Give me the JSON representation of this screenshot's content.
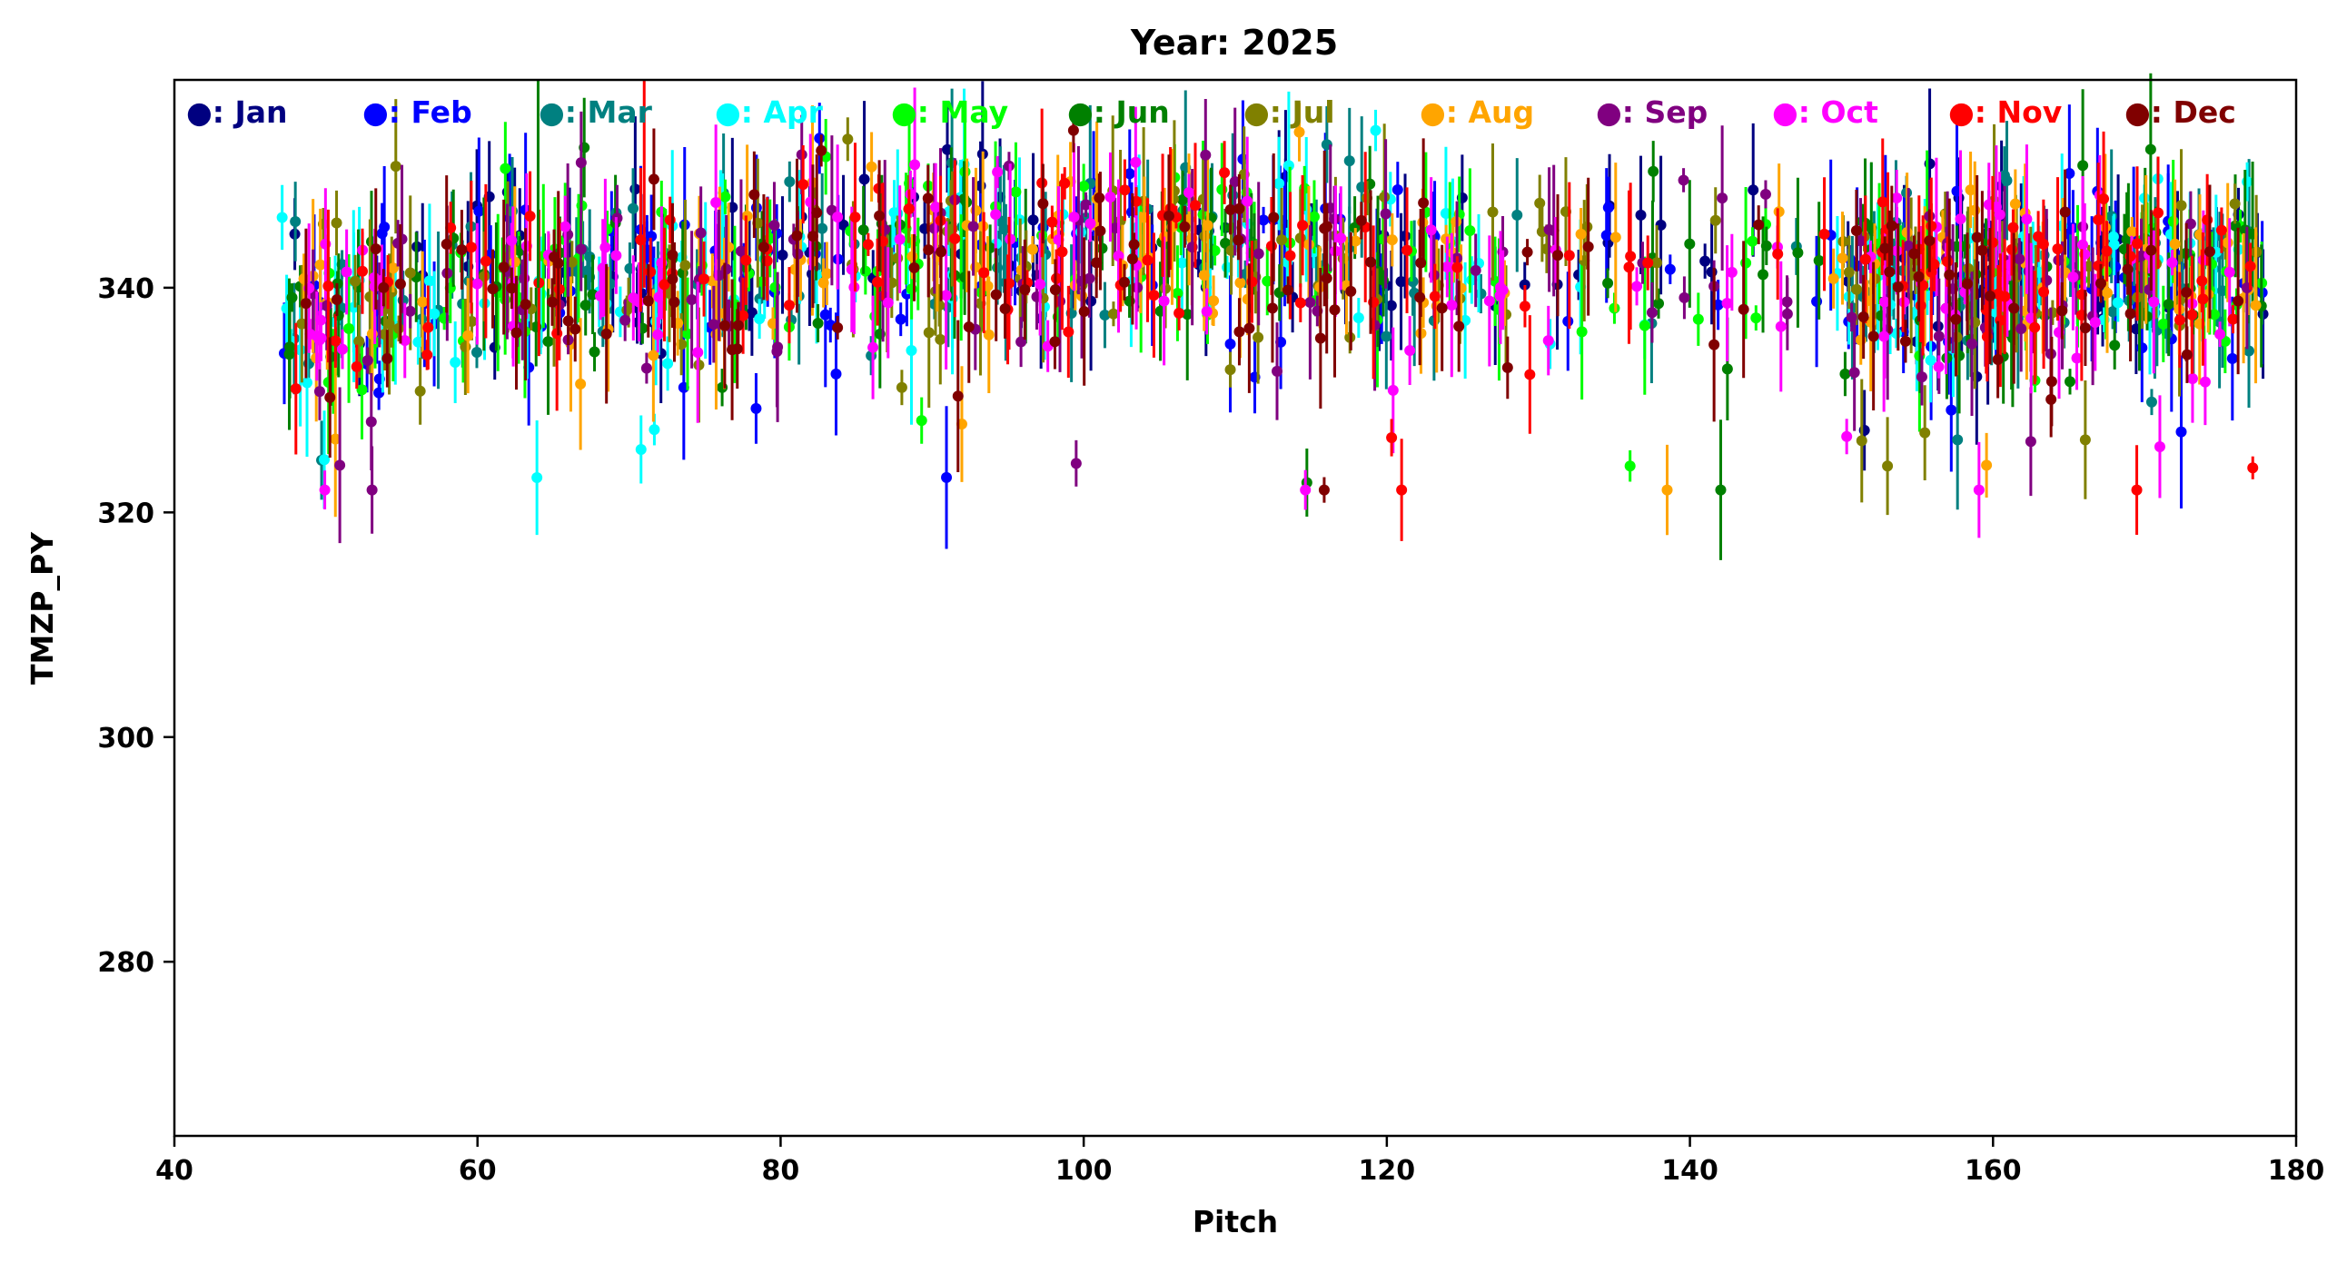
{
  "chart_data": {
    "type": "scatter",
    "title": "Year: 2025",
    "xlabel": "Pitch",
    "ylabel": "TMZP_PY",
    "xlim": [
      40,
      180
    ],
    "ylim": [
      264.5,
      358.5
    ],
    "xticks": [
      40,
      60,
      80,
      100,
      120,
      140,
      160,
      180
    ],
    "yticks": [
      280,
      300,
      320,
      340
    ],
    "grid": false,
    "legend_position": "top",
    "error_bars": true,
    "point_range": {
      "x": [
        47,
        178
      ],
      "y": [
        322,
        354
      ]
    },
    "vertical_lines": [
      {
        "x": 64,
        "y_from": 340,
        "y_to": 358.5,
        "series": "Jun"
      },
      {
        "x": 71,
        "y_from": 340,
        "y_to": 358.5,
        "series": "Nov"
      }
    ],
    "series": [
      {
        "name": "Jan",
        "legend_label": "●: Jan",
        "color": "#000080"
      },
      {
        "name": "Feb",
        "legend_label": "●: Feb",
        "color": "#0000ff"
      },
      {
        "name": "Mar",
        "legend_label": "●: Mar",
        "color": "#008080"
      },
      {
        "name": "Apr",
        "legend_label": "●: Apr",
        "color": "#00ffff"
      },
      {
        "name": "May",
        "legend_label": "●: May",
        "color": "#00ff00"
      },
      {
        "name": "Jun",
        "legend_label": "●: Jun",
        "color": "#008000"
      },
      {
        "name": "Jul",
        "legend_label": "●: Jul",
        "color": "#808000"
      },
      {
        "name": "Aug",
        "legend_label": "●: Aug",
        "color": "#ffa500"
      },
      {
        "name": "Sep",
        "legend_label": "●: Sep",
        "color": "#800080"
      },
      {
        "name": "Oct",
        "legend_label": "●: Oct",
        "color": "#ff00ff"
      },
      {
        "name": "Nov",
        "legend_label": "●: Nov",
        "color": "#ff0000"
      },
      {
        "name": "Dec",
        "legend_label": "●: Dec",
        "color": "#800000"
      }
    ]
  }
}
